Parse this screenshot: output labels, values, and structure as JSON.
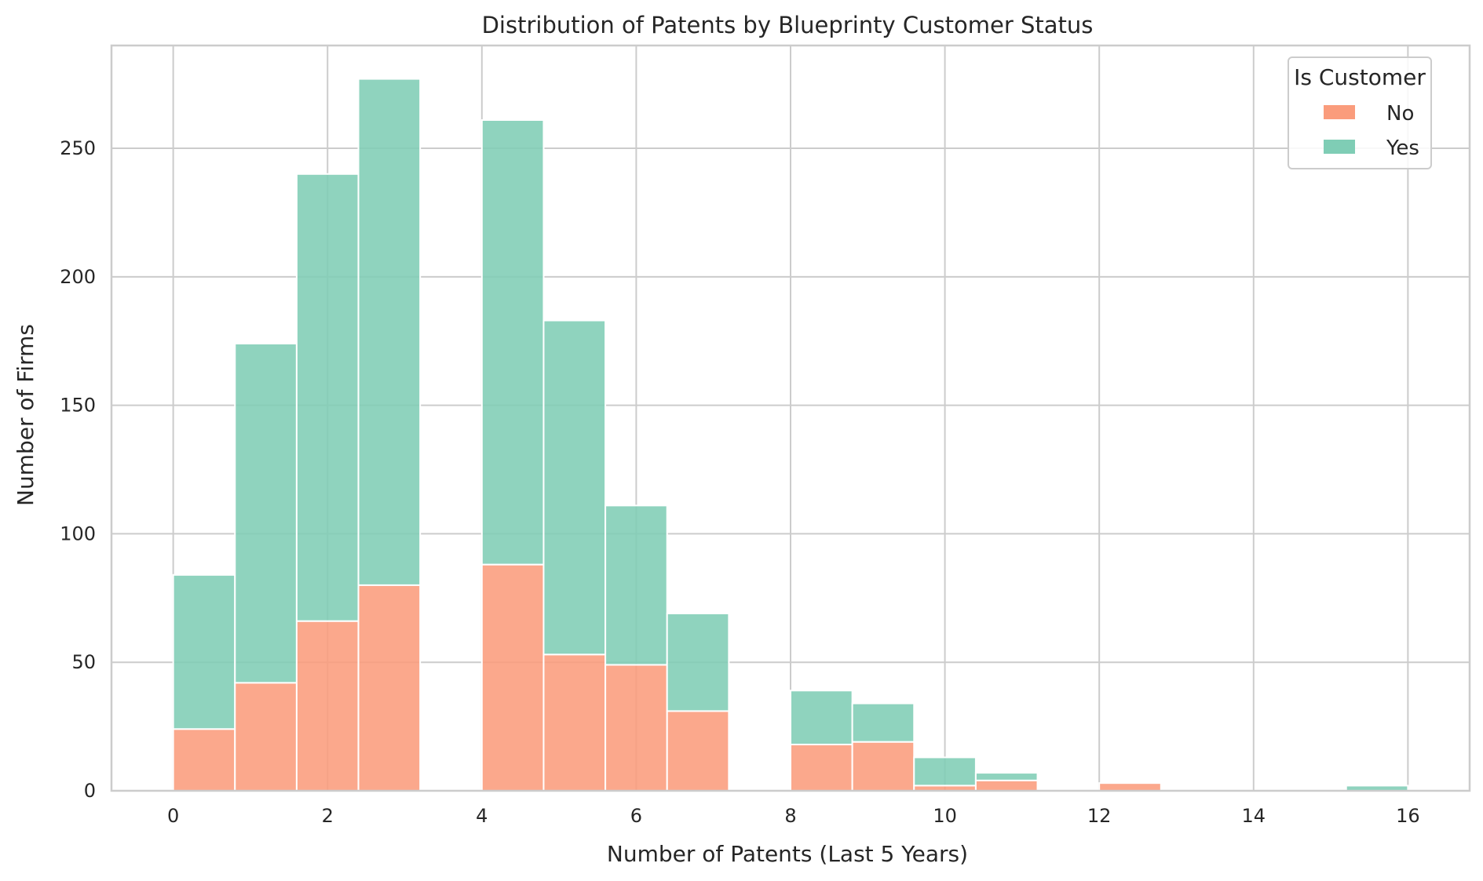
{
  "chart_data": {
    "type": "bar",
    "stacked": true,
    "title": "Distribution of Patents by Blueprinty Customer Status",
    "xlabel": "Number of Patents (Last 5 Years)",
    "ylabel": "Number of Firms",
    "xlim": [
      -0.8,
      16.8
    ],
    "ylim": [
      0,
      290
    ],
    "xticks": [
      0,
      2,
      4,
      6,
      8,
      10,
      12,
      14,
      16
    ],
    "yticks": [
      0,
      50,
      100,
      150,
      200,
      250
    ],
    "grid": true,
    "legend": {
      "title": "Is Customer",
      "position": "top-right",
      "entries": [
        {
          "label": "No",
          "color": "#fa9c7c"
        },
        {
          "label": "Yes",
          "color": "#7fcdb5"
        }
      ]
    },
    "bin_width": 0.8,
    "bins": [
      {
        "x0": 0.0,
        "no": 24,
        "total": 84
      },
      {
        "x0": 0.8,
        "no": 42,
        "total": 174
      },
      {
        "x0": 1.6,
        "no": 66,
        "total": 240
      },
      {
        "x0": 2.4,
        "no": 80,
        "total": 277
      },
      {
        "x0": 4.0,
        "no": 88,
        "total": 261
      },
      {
        "x0": 4.8,
        "no": 53,
        "total": 183
      },
      {
        "x0": 5.6,
        "no": 49,
        "total": 111
      },
      {
        "x0": 6.4,
        "no": 31,
        "total": 69
      },
      {
        "x0": 8.0,
        "no": 18,
        "total": 39
      },
      {
        "x0": 8.8,
        "no": 19,
        "total": 34
      },
      {
        "x0": 9.6,
        "no": 2,
        "total": 13
      },
      {
        "x0": 10.4,
        "no": 4,
        "total": 7
      },
      {
        "x0": 12.0,
        "no": 3,
        "total": 3
      },
      {
        "x0": 15.2,
        "no": 0,
        "total": 2
      }
    ],
    "series": [
      {
        "name": "No",
        "color": "#fa9c7c"
      },
      {
        "name": "Yes",
        "color": "#7fcdb5"
      }
    ]
  }
}
